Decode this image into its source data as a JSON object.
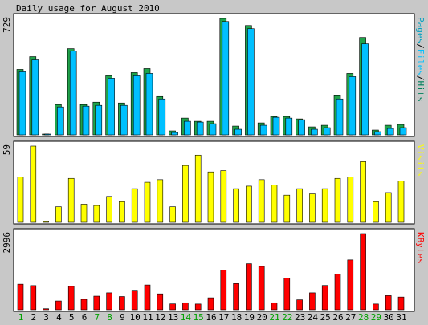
{
  "title": "Daily usage for August 2010",
  "colors": {
    "background": "#c8c8c8",
    "panel": "#ffffff",
    "hits": "#00805c",
    "hits_bar": "#1fa34a",
    "files": "#00c0ff",
    "pages": "#00a0c0",
    "visits": "#ffff00",
    "kbytes": "#ff0000",
    "weekend_label": "#00a000",
    "weekday_label": "#000000"
  },
  "chart_data": [
    {
      "type": "bar",
      "name": "hits-files-pages",
      "legend_parts": [
        {
          "text": "Pages",
          "color": "#00a0c0"
        },
        {
          "text": "/",
          "color": "#000000"
        },
        {
          "text": "Files",
          "color": "#00c0ff"
        },
        {
          "text": "/",
          "color": "#000000"
        },
        {
          "text": "Hits",
          "color": "#00805c"
        }
      ],
      "max_label": "729",
      "ylim": [
        0,
        729
      ],
      "categories": [
        "1",
        "2",
        "3",
        "4",
        "5",
        "6",
        "7",
        "8",
        "9",
        "10",
        "11",
        "12",
        "13",
        "14",
        "15",
        "16",
        "17",
        "18",
        "19",
        "20",
        "21",
        "22",
        "23",
        "24",
        "25",
        "26",
        "27",
        "28",
        "29",
        "30",
        "31"
      ],
      "series": [
        {
          "name": "Hits",
          "values": [
            410,
            490,
            0,
            190,
            540,
            190,
            205,
            370,
            200,
            390,
            415,
            240,
            25,
            105,
            85,
            85,
            729,
            55,
            685,
            75,
            115,
            115,
            100,
            50,
            60,
            245,
            385,
            610,
            30,
            60,
            65
          ]
        },
        {
          "name": "Files",
          "values": [
            395,
            470,
            5,
            175,
            525,
            180,
            185,
            355,
            185,
            370,
            385,
            225,
            15,
            85,
            80,
            70,
            710,
            35,
            665,
            60,
            110,
            105,
            95,
            35,
            45,
            225,
            365,
            570,
            20,
            40,
            45
          ]
        }
      ]
    },
    {
      "type": "bar",
      "name": "visits",
      "legend_parts": [
        {
          "text": "Visits",
          "color": "#ffff00"
        }
      ],
      "max_label": "59",
      "ylim": [
        0,
        59
      ],
      "categories": [
        "1",
        "2",
        "3",
        "4",
        "5",
        "6",
        "7",
        "8",
        "9",
        "10",
        "11",
        "12",
        "13",
        "14",
        "15",
        "16",
        "17",
        "18",
        "19",
        "20",
        "21",
        "22",
        "23",
        "24",
        "25",
        "26",
        "27",
        "28",
        "29",
        "30",
        "31"
      ],
      "series": [
        {
          "name": "Visits",
          "values": [
            35,
            59,
            0,
            12,
            34,
            14,
            13,
            20,
            16,
            26,
            31,
            33,
            12,
            44,
            52,
            39,
            40,
            26,
            28,
            33,
            29,
            21,
            26,
            22,
            26,
            34,
            35,
            47,
            16,
            23,
            32
          ]
        }
      ]
    },
    {
      "type": "bar",
      "name": "kbytes",
      "legend_parts": [
        {
          "text": "KBytes",
          "color": "#ff0000"
        }
      ],
      "max_label": "2996",
      "ylim": [
        0,
        2996
      ],
      "categories": [
        "1",
        "2",
        "3",
        "4",
        "5",
        "6",
        "7",
        "8",
        "9",
        "10",
        "11",
        "12",
        "13",
        "14",
        "15",
        "16",
        "17",
        "18",
        "19",
        "20",
        "21",
        "22",
        "23",
        "24",
        "25",
        "26",
        "27",
        "28",
        "29",
        "30",
        "31"
      ],
      "series": [
        {
          "name": "KBytes",
          "values": [
            1005,
            950,
            40,
            345,
            920,
            410,
            535,
            665,
            520,
            735,
            975,
            625,
            230,
            275,
            225,
            470,
            1555,
            1030,
            1810,
            1705,
            275,
            1250,
            390,
            665,
            955,
            1400,
            1960,
            2996,
            225,
            555,
            500
          ]
        }
      ]
    }
  ],
  "day_labels": [
    {
      "text": "1",
      "weekend": true
    },
    {
      "text": "2",
      "weekend": false
    },
    {
      "text": "3",
      "weekend": false
    },
    {
      "text": "4",
      "weekend": false
    },
    {
      "text": "5",
      "weekend": false
    },
    {
      "text": "6",
      "weekend": false
    },
    {
      "text": "7",
      "weekend": true
    },
    {
      "text": "8",
      "weekend": true
    },
    {
      "text": "9",
      "weekend": false
    },
    {
      "text": "10",
      "weekend": false
    },
    {
      "text": "11",
      "weekend": false
    },
    {
      "text": "12",
      "weekend": false
    },
    {
      "text": "13",
      "weekend": false
    },
    {
      "text": "14",
      "weekend": true
    },
    {
      "text": "15",
      "weekend": true
    },
    {
      "text": "16",
      "weekend": false
    },
    {
      "text": "17",
      "weekend": false
    },
    {
      "text": "18",
      "weekend": false
    },
    {
      "text": "19",
      "weekend": false
    },
    {
      "text": "20",
      "weekend": false
    },
    {
      "text": "21",
      "weekend": true
    },
    {
      "text": "22",
      "weekend": true
    },
    {
      "text": "23",
      "weekend": false
    },
    {
      "text": "24",
      "weekend": false
    },
    {
      "text": "25",
      "weekend": false
    },
    {
      "text": "26",
      "weekend": false
    },
    {
      "text": "27",
      "weekend": false
    },
    {
      "text": "28",
      "weekend": true
    },
    {
      "text": "29",
      "weekend": true
    },
    {
      "text": "30",
      "weekend": false
    },
    {
      "text": "31",
      "weekend": false
    }
  ]
}
